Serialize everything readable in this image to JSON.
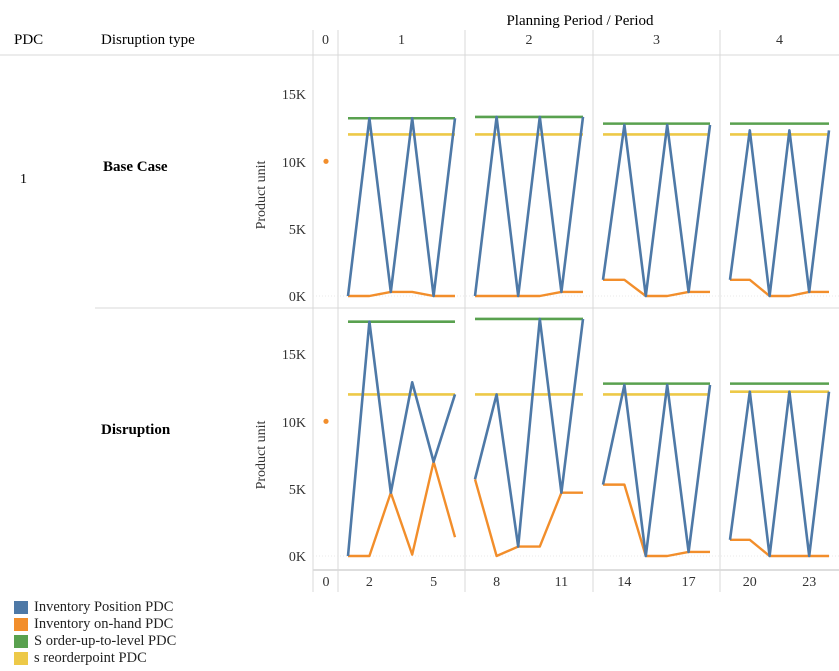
{
  "header": {
    "col_pdc": "PDC",
    "col_disruption": "Disruption type",
    "col_period": "Planning Period  /  Period",
    "period_labels": [
      "0",
      "1",
      "2",
      "3",
      "4"
    ]
  },
  "row_pdc": "1",
  "panels_rows": [
    {
      "label": "Base Case",
      "ylabel": "Product unit",
      "yticks": [
        "15K",
        "10K",
        "5K",
        "0K"
      ]
    },
    {
      "label": "Disruption",
      "ylabel": "Product unit",
      "yticks": [
        "15K",
        "10K",
        "5K",
        "0K"
      ]
    }
  ],
  "x_axis_ticks": [
    {
      "period": "0",
      "labels": [
        "0"
      ]
    },
    {
      "period": "1",
      "labels": [
        "2",
        "5"
      ]
    },
    {
      "period": "2",
      "labels": [
        "8",
        "11"
      ]
    },
    {
      "period": "3",
      "labels": [
        "14",
        "17"
      ]
    },
    {
      "period": "4",
      "labels": [
        "20",
        "23"
      ]
    }
  ],
  "legend": [
    {
      "label": "Inventory Position PDC",
      "color": "#4e79a7"
    },
    {
      "label": "Inventory on-hand PDC",
      "color": "#f28e2b"
    },
    {
      "label": "S order-up-to-level PDC",
      "color": "#59a14f"
    },
    {
      "label": "s reorderpoint PDC",
      "color": "#edc948"
    }
  ],
  "chart_data": {
    "type": "line",
    "ylim": [
      0,
      18500
    ],
    "series_colors": {
      "inventory_position": "#4e79a7",
      "inventory_onhand": "#f28e2b",
      "S": "#59a14f",
      "s": "#edc948"
    },
    "rows": [
      {
        "label": "Base Case",
        "period0_point": {
          "x": 0,
          "y": 10000
        },
        "periods": [
          {
            "period": "1",
            "x": [
              1,
              2,
              3,
              4,
              5,
              6
            ],
            "inventory_position": [
              0,
              13200,
              300,
              13200,
              0,
              13200
            ],
            "inventory_onhand": [
              0,
              0,
              300,
              300,
              0,
              0
            ],
            "S": 13200,
            "s": 12000
          },
          {
            "period": "2",
            "x": [
              7,
              8,
              9,
              10,
              11,
              12
            ],
            "inventory_position": [
              0,
              13300,
              0,
              13300,
              300,
              13300
            ],
            "inventory_onhand": [
              0,
              0,
              0,
              0,
              300,
              300
            ],
            "S": 13300,
            "s": 12000
          },
          {
            "period": "3",
            "x": [
              13,
              14,
              15,
              16,
              17,
              18
            ],
            "inventory_position": [
              1200,
              12700,
              0,
              12700,
              300,
              12700
            ],
            "inventory_onhand": [
              1200,
              1200,
              0,
              0,
              300,
              300
            ],
            "S": 12800,
            "s": 12000
          },
          {
            "period": "4",
            "x": [
              19,
              20,
              21,
              22,
              23,
              24
            ],
            "inventory_position": [
              1200,
              12300,
              0,
              12300,
              300,
              12300
            ],
            "inventory_onhand": [
              1200,
              1200,
              0,
              0,
              300,
              300
            ],
            "S": 12800,
            "s": 12000
          }
        ]
      },
      {
        "label": "Disruption",
        "period0_point": {
          "x": 0,
          "y": 10000
        },
        "periods": [
          {
            "period": "1",
            "x": [
              1,
              2,
              3,
              4,
              5,
              6
            ],
            "inventory_position": [
              0,
              17400,
              4700,
              12900,
              7000,
              12000
            ],
            "inventory_onhand": [
              0,
              0,
              4700,
              100,
              7000,
              1400
            ],
            "S": 17400,
            "s": 12000
          },
          {
            "period": "2",
            "x": [
              7,
              8,
              9,
              10,
              11,
              12
            ],
            "inventory_position": [
              5700,
              12000,
              700,
              17600,
              4700,
              17600
            ],
            "inventory_onhand": [
              5700,
              0,
              700,
              700,
              4700,
              4700
            ],
            "S": 17600,
            "s": 12000
          },
          {
            "period": "3",
            "x": [
              13,
              14,
              15,
              16,
              17,
              18
            ],
            "inventory_position": [
              5300,
              12700,
              0,
              12700,
              300,
              12700
            ],
            "inventory_onhand": [
              5300,
              5300,
              0,
              0,
              300,
              300
            ],
            "S": 12800,
            "s": 12000
          },
          {
            "period": "4",
            "x": [
              19,
              20,
              21,
              22,
              23,
              24
            ],
            "inventory_position": [
              1200,
              12200,
              0,
              12200,
              0,
              12200
            ],
            "inventory_onhand": [
              1200,
              1200,
              0,
              0,
              0,
              0
            ],
            "S": 12800,
            "s": 12200
          }
        ]
      }
    ]
  }
}
